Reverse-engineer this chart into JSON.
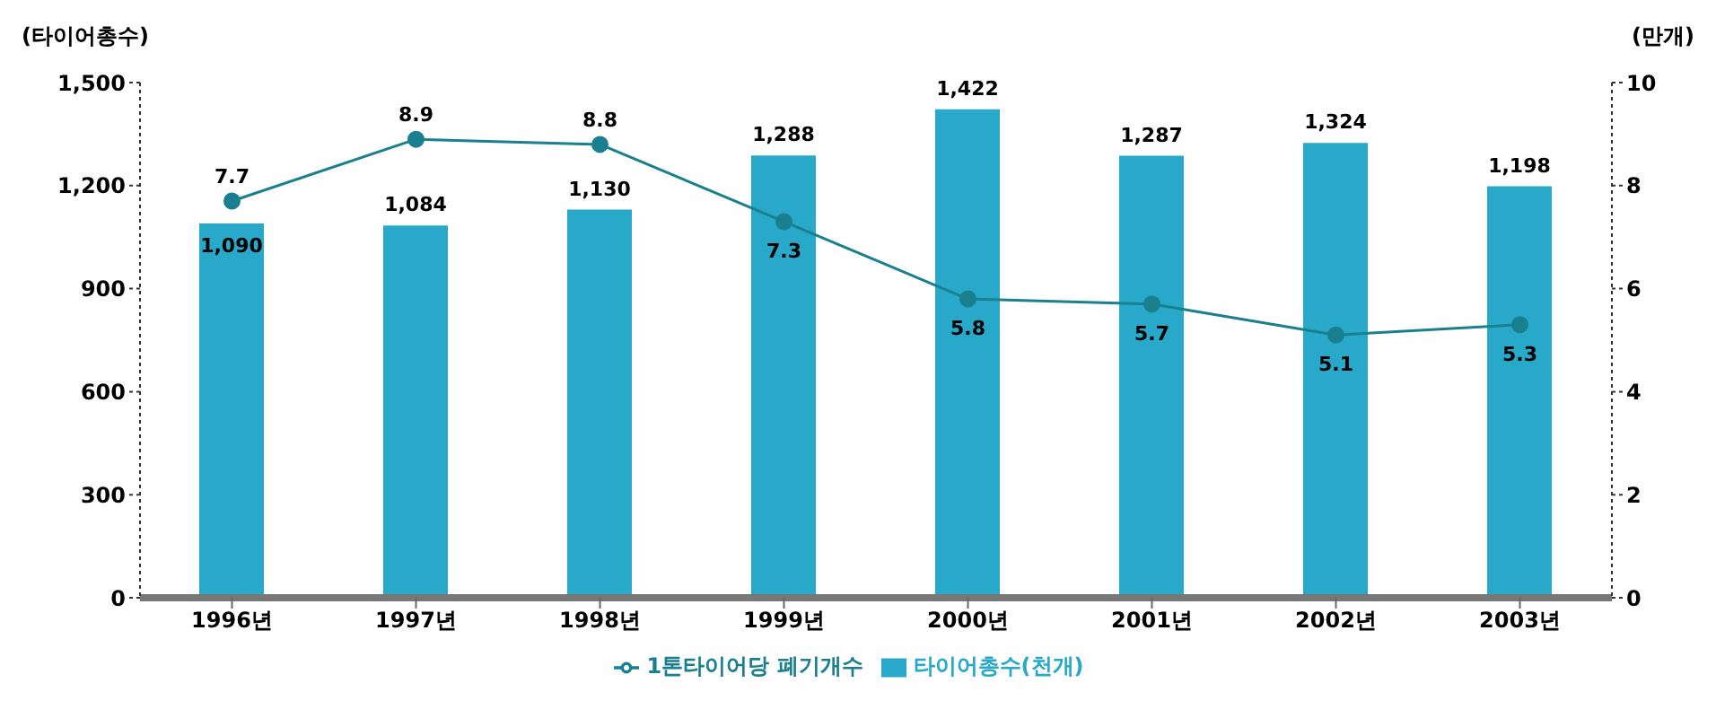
{
  "chart_data": {
    "type": "bar",
    "ylabel": "(타이어총수)",
    "y2label": "(만개)",
    "categories": [
      "1996년",
      "1997년",
      "1998년",
      "1999년",
      "2000년",
      "2001년",
      "2002년",
      "2003년"
    ],
    "series": [
      {
        "name": "타이어총수(천개)",
        "color": "#29a9c9",
        "values": [
          1090,
          1084,
          1130,
          1288,
          1422,
          1287,
          1324,
          1198
        ],
        "value_labels": [
          "1,090",
          "1,084",
          "1,130",
          "1,288",
          "1,422",
          "1,287",
          "1,324",
          "1,198"
        ]
      },
      {
        "name": "1톤타이어당 폐기개수",
        "type": "line",
        "axis": "y2",
        "color": "#1a7f8f",
        "marker": "circle",
        "values": [
          7.7,
          8.9,
          8.8,
          7.3,
          5.8,
          5.7,
          5.1,
          5.3
        ]
      }
    ],
    "ylim": [
      0,
      1500
    ],
    "yticks": [
      0,
      300,
      600,
      900,
      {
        "value": 1200,
        "label": "1,200"
      },
      {
        "value": 1500,
        "label": "1,500"
      }
    ],
    "y2lim": [
      0,
      10
    ],
    "y2ticks": [
      0,
      2,
      4,
      6,
      8,
      10
    ],
    "data_labels": true,
    "legend": "bottom"
  }
}
